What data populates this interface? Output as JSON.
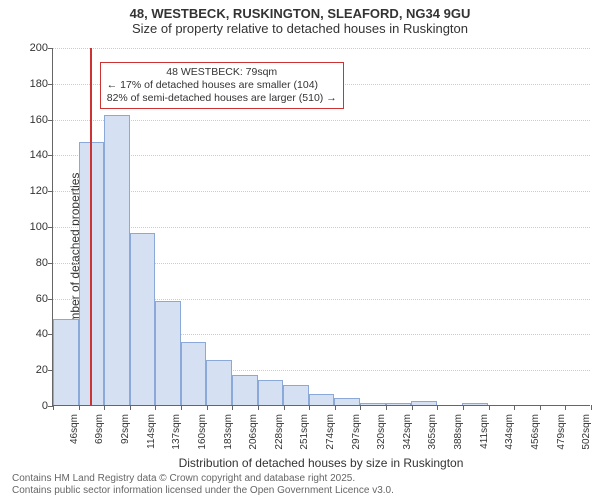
{
  "title": "48, WESTBECK, RUSKINGTON, SLEAFORD, NG34 9GU",
  "subtitle": "Size of property relative to detached houses in Ruskington",
  "ylabel": "Number of detached properties",
  "xlabel": "Distribution of detached houses by size in Ruskington",
  "footer1": "Contains HM Land Registry data © Crown copyright and database right 2025.",
  "footer2": "Contains public sector information licensed under the Open Government Licence v3.0.",
  "annotation": {
    "line1": "48 WESTBECK: 79sqm",
    "line2": "← 17% of detached houses are smaller (104)",
    "line3": "82% of semi-detached houses are larger (510) →"
  },
  "chart": {
    "type": "histogram",
    "background_color": "#ffffff",
    "grid_color": "#cccccc",
    "axis_color": "#666666",
    "bar_fill": "#d5e0f2",
    "bar_border": "#8aa8d8",
    "marker_color": "#cc3333",
    "ylim": [
      0,
      200
    ],
    "ytick_step": 20,
    "bin_start": 46,
    "bin_width": 23,
    "xtick_unit": "sqm",
    "marker_value": 79,
    "annotation_box_color": "#cc3333",
    "bins": [
      {
        "label": "46sqm",
        "value": 48
      },
      {
        "label": "69sqm",
        "value": 147
      },
      {
        "label": "92sqm",
        "value": 162
      },
      {
        "label": "114sqm",
        "value": 96
      },
      {
        "label": "137sqm",
        "value": 58
      },
      {
        "label": "160sqm",
        "value": 35
      },
      {
        "label": "183sqm",
        "value": 25
      },
      {
        "label": "206sqm",
        "value": 17
      },
      {
        "label": "228sqm",
        "value": 14
      },
      {
        "label": "251sqm",
        "value": 11
      },
      {
        "label": "274sqm",
        "value": 6
      },
      {
        "label": "297sqm",
        "value": 4
      },
      {
        "label": "320sqm",
        "value": 1
      },
      {
        "label": "342sqm",
        "value": 1
      },
      {
        "label": "365sqm",
        "value": 2
      },
      {
        "label": "388sqm",
        "value": 0
      },
      {
        "label": "411sqm",
        "value": 1
      },
      {
        "label": "434sqm",
        "value": 0
      },
      {
        "label": "456sqm",
        "value": 0
      },
      {
        "label": "479sqm",
        "value": 0
      },
      {
        "label": "502sqm",
        "value": 0
      }
    ]
  }
}
